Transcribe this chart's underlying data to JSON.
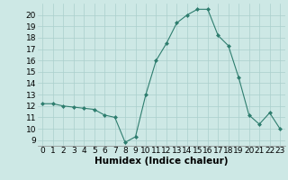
{
  "x": [
    0,
    1,
    2,
    3,
    4,
    5,
    6,
    7,
    8,
    9,
    10,
    11,
    12,
    13,
    14,
    15,
    16,
    17,
    18,
    19,
    20,
    21,
    22,
    23
  ],
  "y": [
    12.2,
    12.2,
    12.0,
    11.9,
    11.8,
    11.7,
    11.2,
    11.0,
    8.8,
    9.3,
    13.0,
    16.0,
    17.5,
    19.3,
    20.0,
    20.5,
    20.5,
    18.2,
    17.3,
    14.5,
    11.2,
    10.4,
    11.4,
    10.0
  ],
  "xlabel": "Humidex (Indice chaleur)",
  "xlim": [
    -0.5,
    23.5
  ],
  "ylim": [
    8.5,
    21.0
  ],
  "yticks": [
    9,
    10,
    11,
    12,
    13,
    14,
    15,
    16,
    17,
    18,
    19,
    20
  ],
  "xticks": [
    0,
    1,
    2,
    3,
    4,
    5,
    6,
    7,
    8,
    9,
    10,
    11,
    12,
    13,
    14,
    15,
    16,
    17,
    18,
    19,
    20,
    21,
    22,
    23
  ],
  "line_color": "#2e7d6e",
  "marker": "D",
  "marker_size": 2.0,
  "bg_color": "#cde8e5",
  "grid_color": "#aacfcc",
  "xlabel_fontsize": 7.5,
  "tick_fontsize": 6.5
}
